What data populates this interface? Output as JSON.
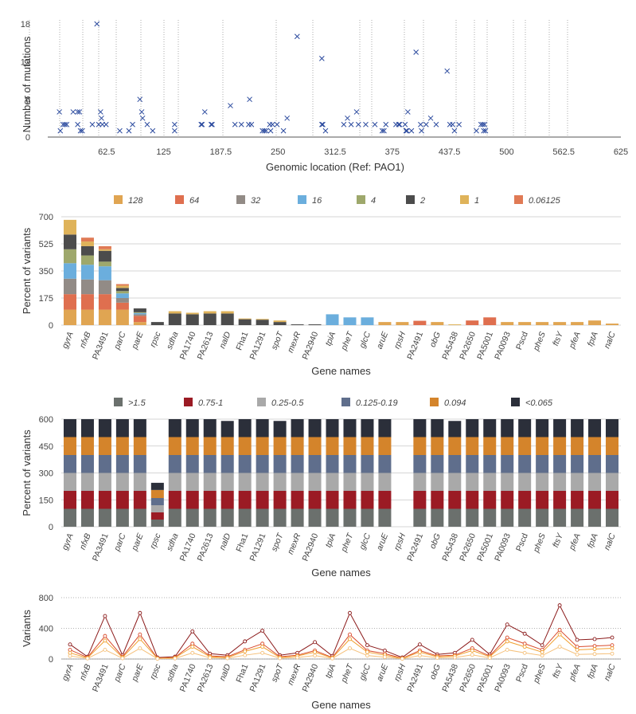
{
  "chart_data": [
    {
      "type": "scatter",
      "xlabel": "Genomic location (Ref: PAO1)",
      "ylabel": "Number of mutations",
      "xlim": [
        0,
        625
      ],
      "ylim": [
        0,
        18
      ],
      "xticks": [
        "62.5",
        "125",
        "187.5",
        "250",
        "312.5",
        "375",
        "437.5",
        "500",
        "562.5",
        "625"
      ],
      "yticks": [
        "0",
        "6",
        "12",
        "18"
      ],
      "marker": "x",
      "color": "#2b4a9e",
      "grid": "vertical dotted",
      "points": [
        [
          11,
          4
        ],
        [
          12,
          1
        ],
        [
          15,
          2
        ],
        [
          17,
          2
        ],
        [
          19,
          2
        ],
        [
          26,
          4
        ],
        [
          31,
          2
        ],
        [
          31,
          4
        ],
        [
          33,
          4
        ],
        [
          34,
          1
        ],
        [
          36,
          1
        ],
        [
          47,
          2
        ],
        [
          52,
          18
        ],
        [
          54,
          2
        ],
        [
          56,
          4
        ],
        [
          57,
          3
        ],
        [
          58,
          2
        ],
        [
          62,
          2
        ],
        [
          77,
          1
        ],
        [
          87,
          1
        ],
        [
          91,
          2
        ],
        [
          99,
          6
        ],
        [
          101,
          4
        ],
        [
          102,
          3
        ],
        [
          107,
          2
        ],
        [
          113,
          1
        ],
        [
          137,
          1
        ],
        [
          137,
          2
        ],
        [
          166,
          2
        ],
        [
          167,
          2
        ],
        [
          170,
          4
        ],
        [
          177,
          2
        ],
        [
          178,
          2
        ],
        [
          198,
          5
        ],
        [
          203,
          2
        ],
        [
          210,
          2
        ],
        [
          218,
          2
        ],
        [
          219,
          6
        ],
        [
          221,
          2
        ],
        [
          233,
          1
        ],
        [
          235,
          1
        ],
        [
          237,
          1
        ],
        [
          241,
          2
        ],
        [
          242,
          1
        ],
        [
          244,
          2
        ],
        [
          249,
          2
        ],
        [
          256,
          1
        ],
        [
          260,
          3
        ],
        [
          271,
          16
        ],
        [
          298,
          12.5
        ],
        [
          298,
          2
        ],
        [
          299,
          2
        ],
        [
          302,
          1
        ],
        [
          322,
          2
        ],
        [
          326,
          3
        ],
        [
          330,
          2
        ],
        [
          336,
          4
        ],
        [
          338,
          2
        ],
        [
          346,
          2
        ],
        [
          356,
          2
        ],
        [
          364,
          1
        ],
        [
          366,
          1
        ],
        [
          368,
          2
        ],
        [
          379,
          2
        ],
        [
          382,
          2
        ],
        [
          383,
          2
        ],
        [
          389,
          2
        ],
        [
          390,
          1
        ],
        [
          391,
          1
        ],
        [
          392,
          4
        ],
        [
          396,
          1
        ],
        [
          401,
          13.5
        ],
        [
          406,
          2
        ],
        [
          407,
          1
        ],
        [
          412,
          2
        ],
        [
          417,
          3
        ],
        [
          423,
          2
        ],
        [
          435,
          10.5
        ],
        [
          438,
          2
        ],
        [
          441,
          2
        ],
        [
          443,
          1
        ],
        [
          448,
          2
        ],
        [
          467,
          1
        ],
        [
          472,
          2
        ],
        [
          474,
          2
        ],
        [
          475,
          1
        ],
        [
          476,
          2
        ],
        [
          477,
          1
        ]
      ]
    },
    {
      "type": "bar",
      "stacked": true,
      "xlabel": "Gene names",
      "ylabel": "Percent of variants",
      "ylim": [
        0,
        700
      ],
      "yticks": [
        "0",
        "175",
        "350",
        "525",
        "700"
      ],
      "categories": [
        "gyrA",
        "nfxB",
        "PA3491",
        "parC",
        "parE",
        "rpsc",
        "sdha",
        "PA1740",
        "PA2613",
        "nalD",
        "Fha1",
        "PA1291",
        "spoT",
        "mexR",
        "PA2940",
        "tpiA",
        "pheT",
        "glcC",
        "aruE",
        "rpsH",
        "PA2491",
        "obG",
        "PA5438",
        "PA2650",
        "PA5001",
        "PA0093",
        "Pscd",
        "pheS",
        "ftsY",
        "pfeA",
        "fptA",
        "nalC"
      ],
      "series": [
        {
          "name": "128",
          "color": "#e0a552",
          "values": [
            100,
            100,
            100,
            100,
            20,
            0,
            0,
            0,
            0,
            0,
            0,
            0,
            0,
            0,
            0,
            0,
            0,
            0,
            20,
            20,
            0,
            20,
            0,
            0,
            0,
            20,
            20,
            20,
            20,
            20,
            30,
            10
          ]
        },
        {
          "name": "64",
          "color": "#df6f4f",
          "values": [
            100,
            100,
            100,
            45,
            40,
            0,
            0,
            0,
            0,
            0,
            0,
            0,
            0,
            0,
            0,
            0,
            0,
            0,
            0,
            0,
            28,
            0,
            0,
            30,
            50,
            0,
            0,
            0,
            0,
            0,
            0,
            0
          ]
        },
        {
          "name": "32",
          "color": "#928b86",
          "values": [
            100,
            95,
            90,
            30,
            10,
            0,
            0,
            0,
            0,
            0,
            0,
            0,
            0,
            0,
            0,
            0,
            0,
            0,
            0,
            0,
            0,
            0,
            0,
            0,
            0,
            0,
            0,
            0,
            0,
            0,
            0,
            0
          ]
        },
        {
          "name": "16",
          "color": "#6baedd",
          "values": [
            100,
            95,
            90,
            30,
            8,
            0,
            0,
            0,
            0,
            0,
            0,
            0,
            0,
            0,
            0,
            70,
            50,
            50,
            0,
            0,
            0,
            0,
            0,
            0,
            0,
            0,
            0,
            0,
            0,
            0,
            0,
            0
          ]
        },
        {
          "name": "4",
          "color": "#9ea86c",
          "values": [
            90,
            60,
            30,
            15,
            5,
            0,
            0,
            0,
            0,
            0,
            0,
            0,
            0,
            0,
            0,
            0,
            0,
            0,
            0,
            0,
            0,
            0,
            0,
            0,
            0,
            0,
            0,
            0,
            0,
            0,
            0,
            0
          ]
        },
        {
          "name": "2",
          "color": "#4c4c4c",
          "values": [
            95,
            60,
            70,
            20,
            25,
            20,
            75,
            70,
            75,
            75,
            38,
            35,
            20,
            5,
            5,
            0,
            0,
            0,
            0,
            0,
            0,
            0,
            0,
            0,
            0,
            0,
            0,
            0,
            0,
            0,
            0,
            0
          ]
        },
        {
          "name": "1",
          "color": "#dfb35a",
          "values": [
            95,
            30,
            10,
            15,
            0,
            0,
            15,
            10,
            15,
            15,
            5,
            5,
            10,
            0,
            0,
            0,
            0,
            0,
            0,
            0,
            0,
            0,
            5,
            0,
            0,
            0,
            0,
            0,
            0,
            0,
            0,
            0
          ]
        },
        {
          "name": "0.06125",
          "color": "#e07a55",
          "values": [
            0,
            25,
            20,
            10,
            0,
            0,
            0,
            0,
            0,
            0,
            0,
            0,
            0,
            0,
            0,
            0,
            0,
            0,
            0,
            0,
            0,
            0,
            0,
            0,
            0,
            0,
            0,
            0,
            0,
            0,
            0,
            0
          ]
        }
      ]
    },
    {
      "type": "bar",
      "stacked": true,
      "xlabel": "Gene names",
      "ylabel": "Percent of variants",
      "ylim": [
        0,
        600
      ],
      "yticks": [
        "0",
        "150",
        "300",
        "450",
        "600"
      ],
      "categories": [
        "gyrA",
        "nfxB",
        "PA3491",
        "parC",
        "parE",
        "rpsc",
        "sdha",
        "PA1740",
        "PA2613",
        "nalD",
        "Fha1",
        "PA1291",
        "spoT",
        "mexR",
        "PA2940",
        "tpiA",
        "pheT",
        "glcC",
        "aruE",
        "rpsH",
        "PA2491",
        "obG",
        "PA5438",
        "PA2650",
        "PA5001",
        "PA0093",
        "Pscd",
        "pheS",
        "ftsY",
        "pfeA",
        "fptA",
        "nalC"
      ],
      "series": [
        {
          "name": ">1.5",
          "color": "#6b706d",
          "values": [
            100,
            100,
            100,
            100,
            100,
            40,
            100,
            100,
            100,
            100,
            100,
            100,
            100,
            100,
            100,
            100,
            100,
            100,
            100,
            0,
            100,
            100,
            100,
            100,
            100,
            100,
            100,
            100,
            100,
            100,
            100,
            100
          ]
        },
        {
          "name": "0.75-1",
          "color": "#9b1b24",
          "values": [
            100,
            100,
            100,
            100,
            100,
            40,
            100,
            100,
            100,
            100,
            100,
            100,
            100,
            100,
            100,
            100,
            100,
            100,
            100,
            0,
            100,
            100,
            100,
            100,
            100,
            100,
            100,
            100,
            100,
            100,
            100,
            100
          ]
        },
        {
          "name": "0.25-0.5",
          "color": "#a9a9a9",
          "values": [
            100,
            100,
            100,
            100,
            100,
            40,
            100,
            100,
            100,
            100,
            100,
            100,
            100,
            100,
            100,
            100,
            100,
            100,
            100,
            0,
            100,
            100,
            100,
            100,
            100,
            100,
            100,
            100,
            100,
            100,
            100,
            100
          ]
        },
        {
          "name": "0.125-0.19",
          "color": "#5f6e8c",
          "values": [
            100,
            100,
            100,
            100,
            100,
            40,
            100,
            100,
            100,
            100,
            100,
            100,
            100,
            100,
            100,
            100,
            100,
            100,
            100,
            0,
            100,
            100,
            100,
            100,
            100,
            100,
            100,
            100,
            100,
            100,
            100,
            100
          ]
        },
        {
          "name": "0.094",
          "color": "#d4842b",
          "values": [
            100,
            100,
            100,
            100,
            100,
            45,
            100,
            100,
            100,
            100,
            100,
            100,
            100,
            100,
            100,
            100,
            100,
            100,
            100,
            0,
            100,
            100,
            100,
            100,
            100,
            100,
            100,
            100,
            100,
            100,
            100,
            100
          ]
        },
        {
          "name": "<0.065",
          "color": "#2b2f3a",
          "values": [
            100,
            100,
            100,
            100,
            100,
            40,
            100,
            100,
            100,
            90,
            100,
            100,
            90,
            100,
            100,
            100,
            100,
            100,
            100,
            0,
            100,
            100,
            90,
            100,
            100,
            100,
            100,
            100,
            100,
            100,
            100,
            100
          ]
        }
      ]
    },
    {
      "type": "line",
      "xlabel": "Gene names",
      "ylabel": "Variants",
      "ylim": [
        0,
        800
      ],
      "yticks": [
        "0",
        "400",
        "800"
      ],
      "categories": [
        "gyrA",
        "nfxB",
        "PA3491",
        "parC",
        "parE",
        "rpsc",
        "sdha",
        "PA1740",
        "PA2613",
        "nalD",
        "Fha1",
        "PA1291",
        "spoT",
        "mexR",
        "PA2940",
        "tpiA",
        "pheT",
        "glcC",
        "aruE",
        "rpsH",
        "PA2491",
        "obG",
        "PA5438",
        "PA2650",
        "PA5001",
        "PA0093",
        "Pscd",
        "pheS",
        "ftsY",
        "pfeA",
        "fptA",
        "nalC"
      ],
      "series": [
        {
          "color": "#8b1a1a",
          "values": [
            190,
            30,
            560,
            50,
            600,
            20,
            30,
            360,
            70,
            50,
            230,
            370,
            50,
            80,
            220,
            40,
            600,
            180,
            110,
            20,
            190,
            60,
            80,
            250,
            60,
            450,
            330,
            180,
            700,
            250,
            260,
            280
          ]
        },
        {
          "color": "#d94a2b",
          "values": [
            120,
            20,
            300,
            30,
            320,
            10,
            20,
            200,
            40,
            30,
            120,
            200,
            30,
            50,
            110,
            20,
            320,
            110,
            70,
            10,
            110,
            40,
            50,
            140,
            40,
            280,
            200,
            120,
            380,
            160,
            170,
            180
          ]
        },
        {
          "color": "#f0a030",
          "values": [
            80,
            15,
            240,
            20,
            260,
            8,
            15,
            160,
            30,
            20,
            100,
            160,
            20,
            40,
            90,
            15,
            260,
            90,
            50,
            8,
            90,
            30,
            40,
            110,
            30,
            230,
            160,
            90,
            320,
            120,
            130,
            140
          ]
        },
        {
          "color": "#f5c07a",
          "values": [
            40,
            8,
            120,
            10,
            140,
            4,
            8,
            80,
            15,
            10,
            50,
            80,
            10,
            20,
            45,
            8,
            140,
            45,
            25,
            4,
            45,
            15,
            20,
            55,
            15,
            120,
            80,
            45,
            160,
            60,
            65,
            70
          ]
        }
      ]
    }
  ]
}
